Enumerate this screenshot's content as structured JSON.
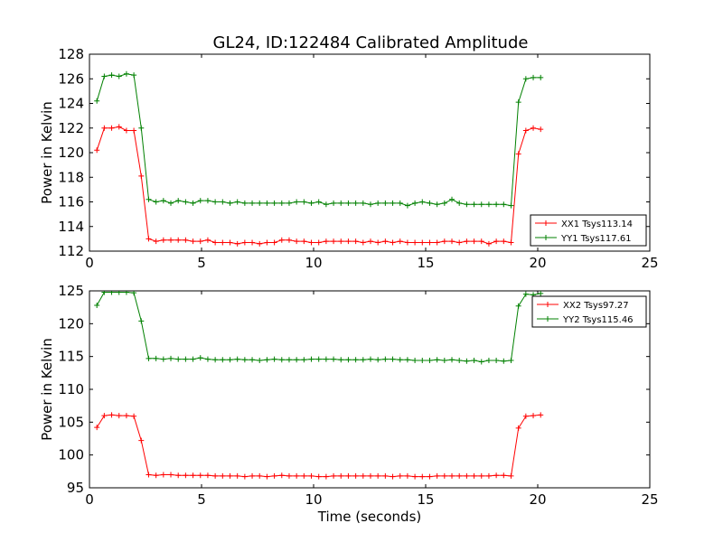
{
  "title": "GL24, ID:122484 Calibrated Amplitude",
  "chart_data": [
    {
      "type": "line",
      "title": "GL24, ID:122484 Calibrated Amplitude",
      "xlabel": "",
      "ylabel": "Power in Kelvin",
      "xlim": [
        0,
        25
      ],
      "ylim": [
        112,
        128
      ],
      "xticks": [
        "0",
        "5",
        "10",
        "15",
        "20",
        "25"
      ],
      "yticks": [
        "112",
        "114",
        "116",
        "118",
        "120",
        "122",
        "124",
        "126",
        "128"
      ],
      "legend_position": "lower-right",
      "x": [
        0.33,
        0.66,
        0.99,
        1.32,
        1.65,
        1.98,
        2.31,
        2.64,
        2.97,
        3.3,
        3.63,
        3.96,
        4.29,
        4.62,
        4.95,
        5.28,
        5.61,
        5.94,
        6.27,
        6.6,
        6.93,
        7.26,
        7.59,
        7.92,
        8.25,
        8.58,
        8.91,
        9.24,
        9.57,
        9.9,
        10.23,
        10.56,
        10.89,
        11.22,
        11.55,
        11.88,
        12.21,
        12.54,
        12.87,
        13.2,
        13.53,
        13.86,
        14.19,
        14.52,
        14.85,
        15.18,
        15.51,
        15.84,
        16.17,
        16.5,
        16.83,
        17.16,
        17.49,
        17.82,
        18.15,
        18.48,
        18.81,
        19.14,
        19.47,
        19.8,
        20.13
      ],
      "series": [
        {
          "name": "XX1 Tsys113.14",
          "color": "#ff0000",
          "values": [
            120.2,
            122.0,
            122.0,
            122.1,
            121.8,
            121.8,
            118.1,
            113.0,
            112.8,
            112.9,
            112.9,
            112.9,
            112.9,
            112.8,
            112.8,
            112.9,
            112.7,
            112.7,
            112.7,
            112.6,
            112.7,
            112.7,
            112.6,
            112.7,
            112.7,
            112.9,
            112.9,
            112.8,
            112.8,
            112.7,
            112.7,
            112.8,
            112.8,
            112.8,
            112.8,
            112.8,
            112.7,
            112.8,
            112.7,
            112.8,
            112.7,
            112.8,
            112.7,
            112.7,
            112.7,
            112.7,
            112.7,
            112.8,
            112.8,
            112.7,
            112.8,
            112.8,
            112.8,
            112.6,
            112.8,
            112.8,
            112.7,
            119.9,
            121.8,
            122.0,
            121.9
          ]
        },
        {
          "name": "YY1 Tsys117.61",
          "color": "#008000",
          "values": [
            124.2,
            126.2,
            126.3,
            126.2,
            126.4,
            126.3,
            122.0,
            116.2,
            116.0,
            116.1,
            115.9,
            116.1,
            116.0,
            115.9,
            116.1,
            116.1,
            116.0,
            116.0,
            115.9,
            116.0,
            115.9,
            115.9,
            115.9,
            115.9,
            115.9,
            115.9,
            115.9,
            116.0,
            116.0,
            115.9,
            116.0,
            115.8,
            115.9,
            115.9,
            115.9,
            115.9,
            115.9,
            115.8,
            115.9,
            115.9,
            115.9,
            115.9,
            115.7,
            115.9,
            116.0,
            115.9,
            115.8,
            115.9,
            116.2,
            115.9,
            115.8,
            115.8,
            115.8,
            115.8,
            115.8,
            115.8,
            115.7,
            124.1,
            126.0,
            126.1,
            126.1
          ]
        }
      ]
    },
    {
      "type": "line",
      "title": "",
      "xlabel": "Time (seconds)",
      "ylabel": "Power in Kelvin",
      "xlim": [
        0,
        25
      ],
      "ylim": [
        95,
        125
      ],
      "xticks": [
        "0",
        "5",
        "10",
        "15",
        "20",
        "25"
      ],
      "yticks": [
        "95",
        "100",
        "105",
        "110",
        "115",
        "120",
        "125"
      ],
      "legend_position": "upper-right",
      "x": [
        0.33,
        0.66,
        0.99,
        1.32,
        1.65,
        1.98,
        2.31,
        2.64,
        2.97,
        3.3,
        3.63,
        3.96,
        4.29,
        4.62,
        4.95,
        5.28,
        5.61,
        5.94,
        6.27,
        6.6,
        6.93,
        7.26,
        7.59,
        7.92,
        8.25,
        8.58,
        8.91,
        9.24,
        9.57,
        9.9,
        10.23,
        10.56,
        10.89,
        11.22,
        11.55,
        11.88,
        12.21,
        12.54,
        12.87,
        13.2,
        13.53,
        13.86,
        14.19,
        14.52,
        14.85,
        15.18,
        15.51,
        15.84,
        16.17,
        16.5,
        16.83,
        17.16,
        17.49,
        17.82,
        18.15,
        18.48,
        18.81,
        19.14,
        19.47,
        19.8,
        20.13
      ],
      "series": [
        {
          "name": "XX2 Tsys97.27",
          "color": "#ff0000",
          "values": [
            104.2,
            106.0,
            106.1,
            106.0,
            106.0,
            105.9,
            102.2,
            97.0,
            96.9,
            97.0,
            97.0,
            96.9,
            96.9,
            96.9,
            96.9,
            96.9,
            96.8,
            96.8,
            96.8,
            96.8,
            96.7,
            96.8,
            96.8,
            96.7,
            96.8,
            96.9,
            96.8,
            96.8,
            96.8,
            96.8,
            96.7,
            96.7,
            96.8,
            96.8,
            96.8,
            96.8,
            96.8,
            96.8,
            96.8,
            96.8,
            96.7,
            96.8,
            96.8,
            96.7,
            96.7,
            96.7,
            96.8,
            96.8,
            96.8,
            96.8,
            96.8,
            96.8,
            96.8,
            96.8,
            96.9,
            96.9,
            96.8,
            104.1,
            105.9,
            106.0,
            106.1
          ]
        },
        {
          "name": "YY2 Tsys115.46",
          "color": "#008000",
          "values": [
            122.8,
            124.8,
            124.8,
            124.8,
            124.8,
            124.7,
            120.4,
            114.7,
            114.7,
            114.6,
            114.7,
            114.6,
            114.6,
            114.6,
            114.8,
            114.6,
            114.5,
            114.5,
            114.5,
            114.6,
            114.5,
            114.5,
            114.4,
            114.5,
            114.6,
            114.5,
            114.5,
            114.5,
            114.5,
            114.6,
            114.6,
            114.6,
            114.6,
            114.5,
            114.5,
            114.5,
            114.5,
            114.6,
            114.5,
            114.6,
            114.6,
            114.5,
            114.5,
            114.4,
            114.4,
            114.4,
            114.5,
            114.4,
            114.5,
            114.4,
            114.3,
            114.4,
            114.2,
            114.4,
            114.4,
            114.3,
            114.4,
            122.7,
            124.5,
            124.4,
            124.6
          ]
        }
      ]
    }
  ]
}
